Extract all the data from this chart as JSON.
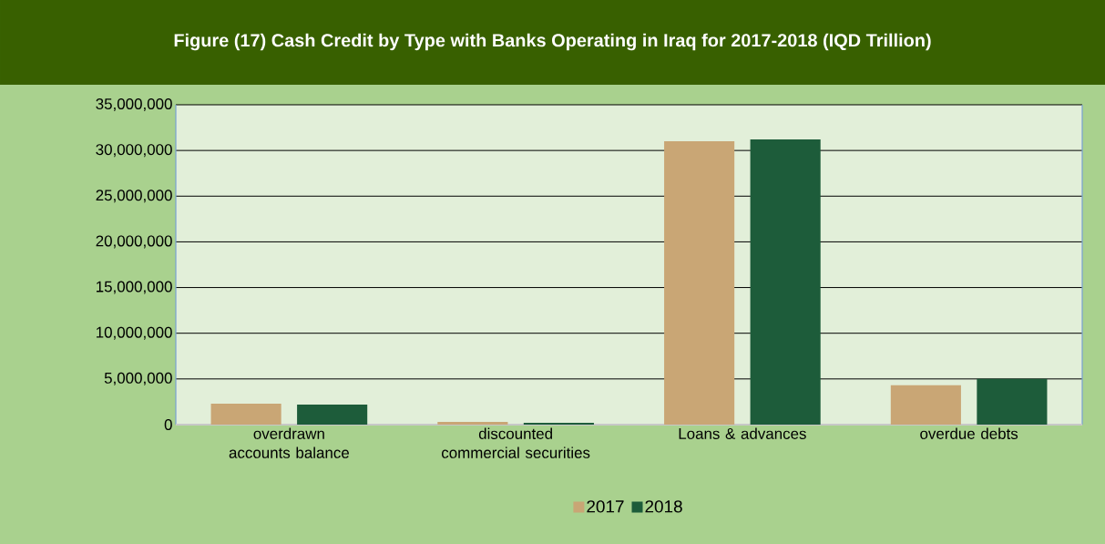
{
  "chart_data": {
    "type": "bar",
    "title": "Figure (17) Cash Credit by Type with Banks Operating in Iraq for 2017-2018 (IQD Trillion)",
    "categories": [
      "overdrawn accounts balance",
      "discounted commercial securities",
      "Loans & advances",
      "overdue debts"
    ],
    "series": [
      {
        "name": "2017",
        "color": "#c9a675",
        "values": [
          2300000,
          300000,
          31000000,
          4300000
        ]
      },
      {
        "name": "2018",
        "color": "#1d5c3a",
        "values": [
          2200000,
          200000,
          31200000,
          5000000
        ]
      }
    ],
    "ylim": [
      0,
      35000000
    ],
    "yticks": [
      0,
      {
        "value": 5000000,
        "label": "5,000,000"
      },
      {
        "value": 10000000,
        "label": "10,000,000"
      },
      {
        "value": 15000000,
        "label": "15,000,000"
      },
      {
        "value": 20000000,
        "label": "20,000,000"
      },
      {
        "value": 25000000,
        "label": "25,000,000"
      },
      {
        "value": 30000000,
        "label": "30,000,000"
      },
      {
        "value": 35000000,
        "label": "35,000,000"
      }
    ],
    "grid": "y",
    "legend": "bottom"
  }
}
